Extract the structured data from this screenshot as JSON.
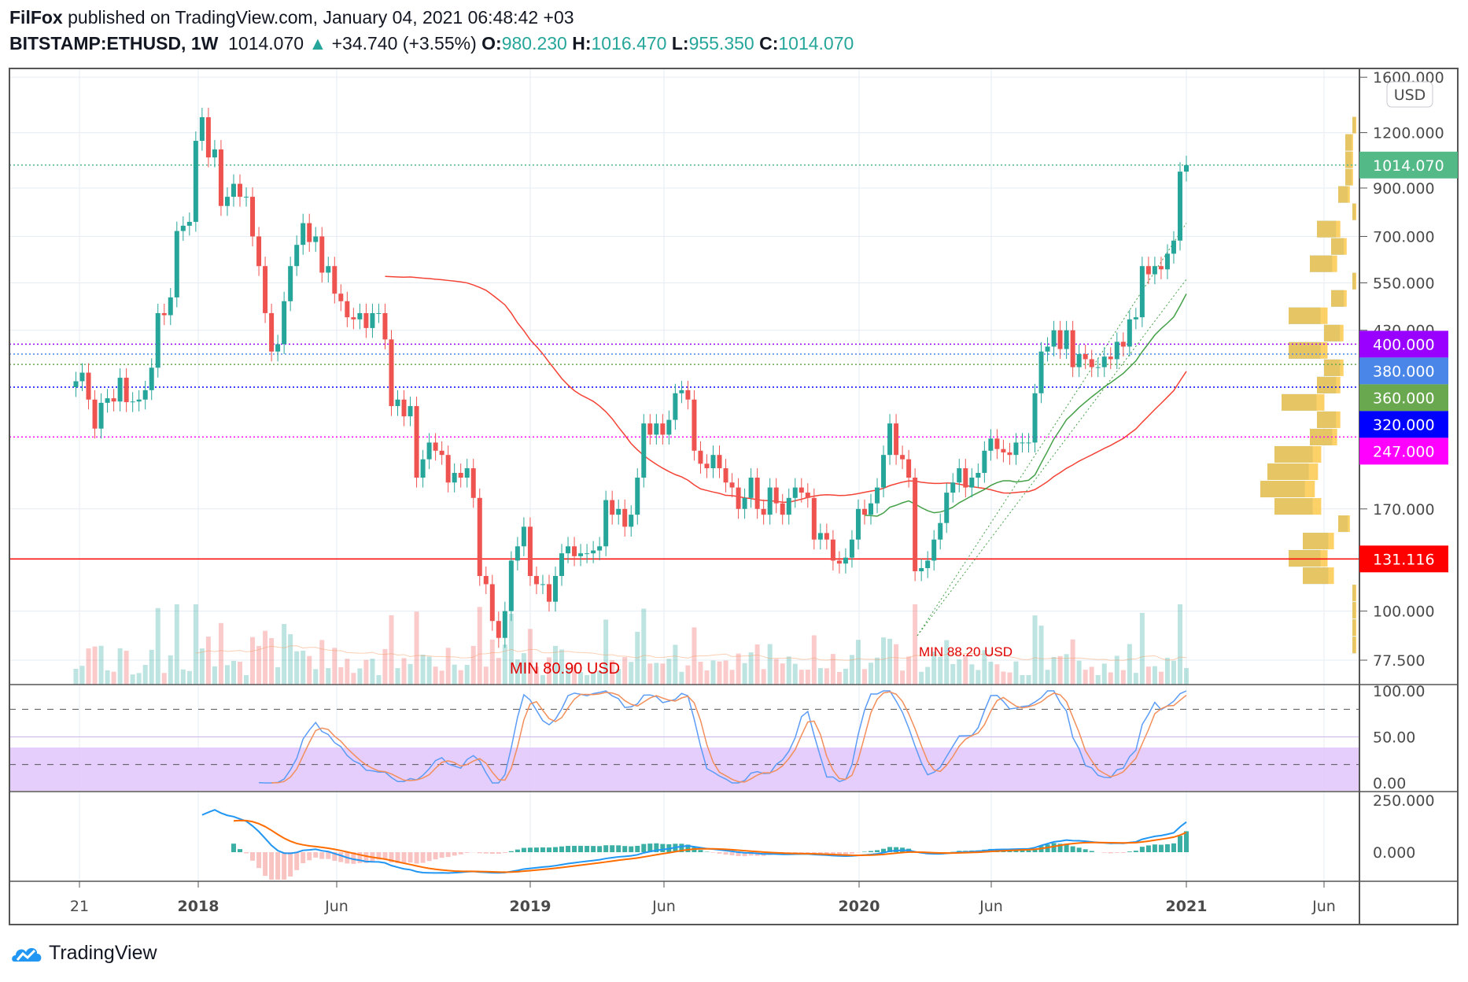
{
  "header": {
    "author": "FilFox",
    "published": "published on TradingView.com, January 04, 2021 06:48:42 +03",
    "symbol": "BITSTAMP:ETHUSD, 1W",
    "last": "1014.070",
    "change": "+34.740 (+3.55%)",
    "o_label": "O:",
    "o": "980.230",
    "h_label": "H:",
    "h": "1016.470",
    "l_label": "L:",
    "l": "955.350",
    "c_label": "C:",
    "c": "1014.070"
  },
  "footer": {
    "brand": "TradingView"
  },
  "chart_data": {
    "type": "candlestick",
    "scale": "log",
    "currency": "USD",
    "ylim": [
      77.5,
      1600
    ],
    "y_ticks": [
      "1600.000",
      "1200.000",
      "900.000",
      "700.000",
      "550.000",
      "430.000",
      "170.000",
      "100.000",
      "77.500"
    ],
    "x_ticks": [
      "21",
      "2018",
      "Jun",
      "2019",
      "Jun",
      "2020",
      "Jun",
      "2021",
      "Jun"
    ],
    "grid": true,
    "weekly_close": [
      330,
      345,
      300,
      258,
      295,
      302,
      297,
      336,
      296,
      297,
      300,
      315,
      354,
      470,
      465,
      510,
      720,
      740,
      755,
      1150,
      1300,
      1055,
      1100,
      820,
      860,
      920,
      860,
      860,
      700,
      600,
      470,
      385,
      400,
      500,
      600,
      670,
      750,
      680,
      700,
      580,
      600,
      520,
      500,
      460,
      455,
      470,
      435,
      470,
      470,
      410,
      290,
      300,
      275,
      290,
      200,
      220,
      240,
      230,
      225,
      195,
      205,
      200,
      210,
      180,
      120,
      115,
      95,
      87,
      100,
      130,
      140,
      155,
      120,
      115,
      115,
      105,
      120,
      135,
      140,
      133,
      135,
      135,
      137,
      140,
      178,
      165,
      170,
      155,
      165,
      200,
      265,
      250,
      265,
      250,
      270,
      310,
      315,
      300,
      230,
      215,
      210,
      225,
      210,
      195,
      190,
      170,
      180,
      200,
      170,
      165,
      190,
      175,
      165,
      180,
      190,
      185,
      180,
      145,
      150,
      145,
      130,
      128,
      132,
      145,
      170,
      165,
      175,
      190,
      225,
      265,
      225,
      220,
      200,
      123,
      125,
      130,
      145,
      158,
      185,
      195,
      210,
      190,
      200,
      205,
      230,
      245,
      232,
      228,
      225,
      240,
      240,
      240,
      310,
      385,
      395,
      430,
      390,
      430,
      355,
      380,
      370,
      355,
      355,
      375,
      370,
      405,
      395,
      455,
      460,
      600,
      575,
      600,
      590,
      640,
      685,
      980,
      1014.07
    ],
    "price_levels": [
      {
        "value": "1014.070",
        "color": "#53b987",
        "style": "dotted"
      },
      {
        "value": "400.000",
        "color": "#9900ff",
        "style": "dotted"
      },
      {
        "value": "380.000",
        "color": "#4a86e8",
        "style": "dotted"
      },
      {
        "value": "360.000",
        "color": "#6aa84f",
        "style": "dotted"
      },
      {
        "value": "320.000",
        "color": "#0000ff",
        "style": "dotted"
      },
      {
        "value": "247.000",
        "color": "#ff00ff",
        "style": "dotted"
      },
      {
        "value": "131.116",
        "color": "#ff0000",
        "style": "solid"
      }
    ],
    "annotations": [
      {
        "text": "MIN 80.90 USD",
        "color": "#e00000"
      },
      {
        "text": "MIN 88.20 USD",
        "color": "#e00000"
      }
    ],
    "up_color": "#26a69a",
    "down_color": "#ef5350",
    "stoch_rsi": {
      "y_ticks": [
        "100.00",
        "50.00",
        "0.00"
      ],
      "upper": 80,
      "lower": 20,
      "band_color": "#e1c4fb",
      "k_color": "#5b9cf6",
      "d_color": "#f28f5b"
    },
    "macd": {
      "y_ticks": [
        "250.000",
        "0.000"
      ],
      "macd_color": "#2196f3",
      "signal_color": "#ff6d00"
    }
  }
}
